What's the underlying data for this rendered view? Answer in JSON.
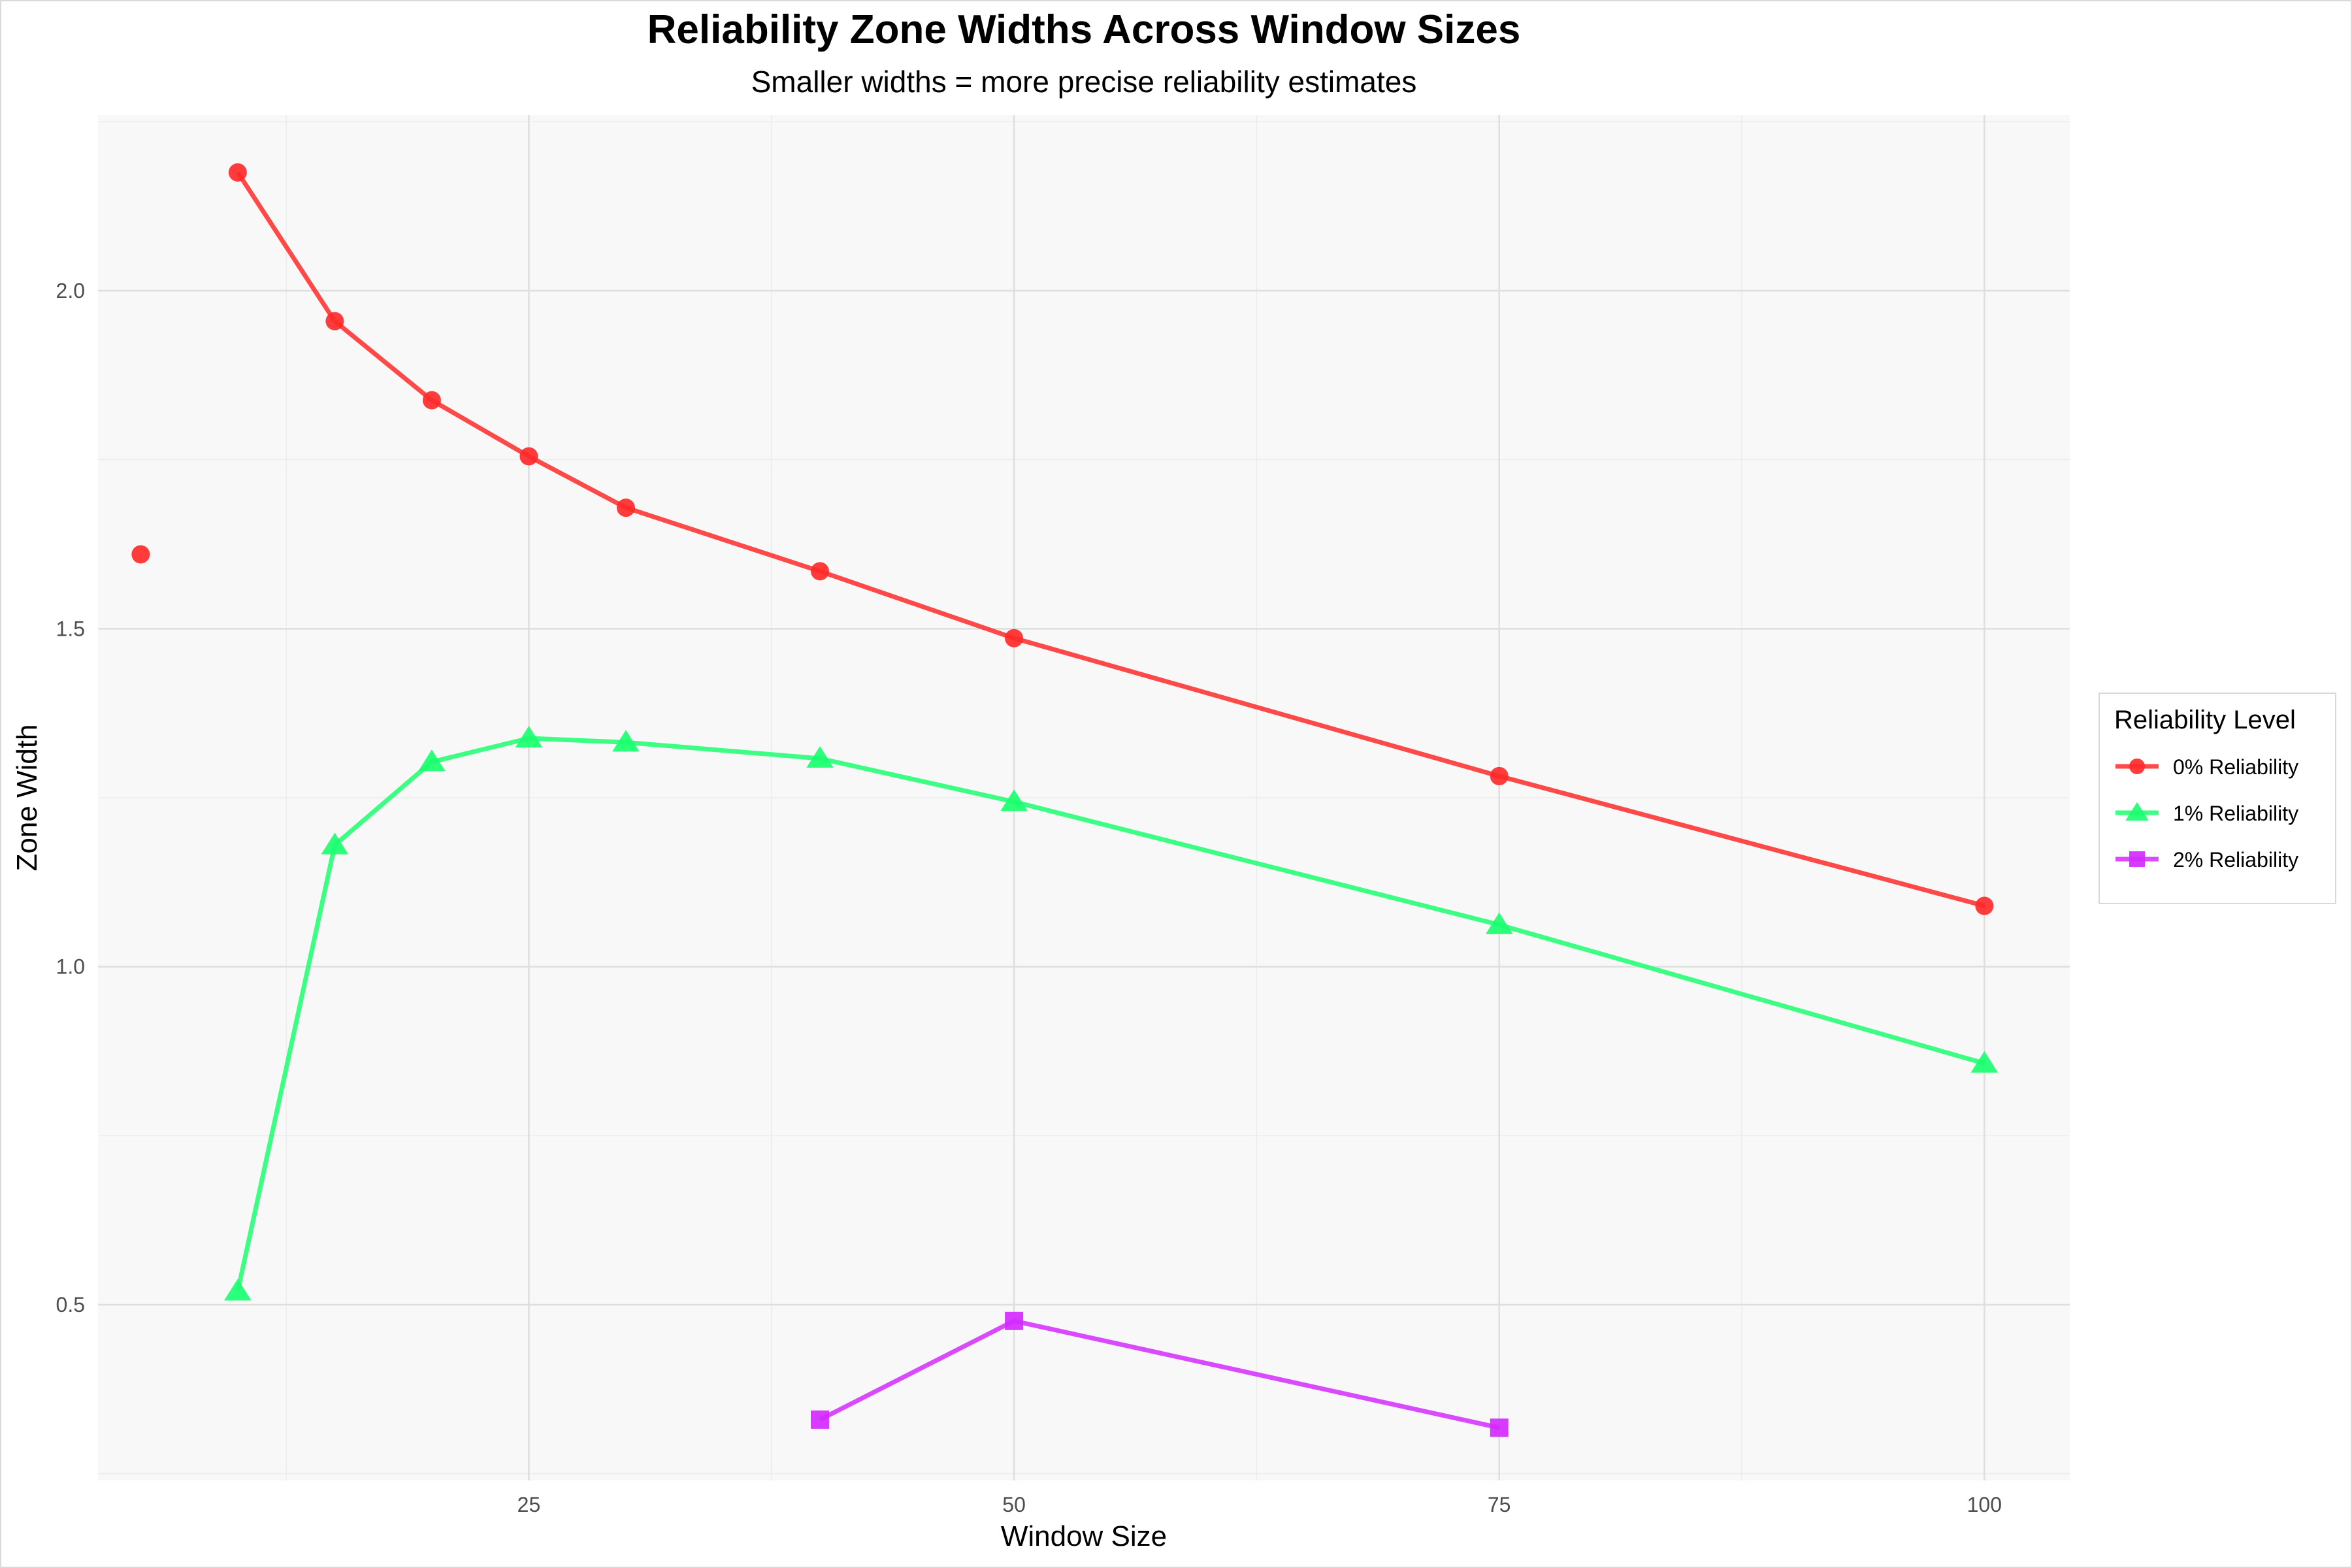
{
  "chart_data": {
    "type": "line",
    "title": "Reliability Zone Widths Across Window Sizes",
    "subtitle": "Smaller widths = more precise reliability estimates",
    "xlabel": "Window Size",
    "ylabel": "Zone Width",
    "xlim": [
      2.8,
      104.4
    ],
    "ylim": [
      0.24,
      2.26
    ],
    "x_ticks": [
      25,
      50,
      75,
      100
    ],
    "y_ticks": [
      0.5,
      1.0,
      1.5,
      2.0
    ],
    "x_tick_labels": [
      "25",
      "50",
      "75",
      "100"
    ],
    "y_tick_labels": [
      "0.5",
      "1.0",
      "1.5",
      "2.0"
    ],
    "grid": true,
    "legend": {
      "title": "Reliability Level",
      "position": "right",
      "entries": [
        "0% Reliability",
        "1% Reliability",
        "2% Reliability"
      ]
    },
    "series": [
      {
        "name": "0% Reliability",
        "color": "#ff2a2a",
        "marker": "circle",
        "points": [
          {
            "x": 5,
            "y": 1.61
          },
          {
            "x": 10,
            "y": 2.175
          },
          {
            "x": 15,
            "y": 1.955
          },
          {
            "x": 20,
            "y": 1.838
          },
          {
            "x": 25,
            "y": 1.755
          },
          {
            "x": 30,
            "y": 1.679
          },
          {
            "x": 40,
            "y": 1.585
          },
          {
            "x": 50,
            "y": 1.486
          },
          {
            "x": 75,
            "y": 1.282
          },
          {
            "x": 100,
            "y": 1.09
          }
        ],
        "connect_from_index": 1
      },
      {
        "name": "1% Reliability",
        "color": "#1aff6e",
        "marker": "triangle",
        "points": [
          {
            "x": 10,
            "y": 0.52
          },
          {
            "x": 15,
            "y": 1.18
          },
          {
            "x": 20,
            "y": 1.303
          },
          {
            "x": 25,
            "y": 1.338
          },
          {
            "x": 30,
            "y": 1.332
          },
          {
            "x": 40,
            "y": 1.308
          },
          {
            "x": 50,
            "y": 1.244
          },
          {
            "x": 75,
            "y": 1.062
          },
          {
            "x": 100,
            "y": 0.857
          }
        ],
        "connect_from_index": 0
      },
      {
        "name": "2% Reliability",
        "color": "#d42aff",
        "marker": "square",
        "points": [
          {
            "x": 40,
            "y": 0.33
          },
          {
            "x": 50,
            "y": 0.476
          },
          {
            "x": 75,
            "y": 0.318
          }
        ],
        "connect_from_index": 0
      }
    ]
  }
}
